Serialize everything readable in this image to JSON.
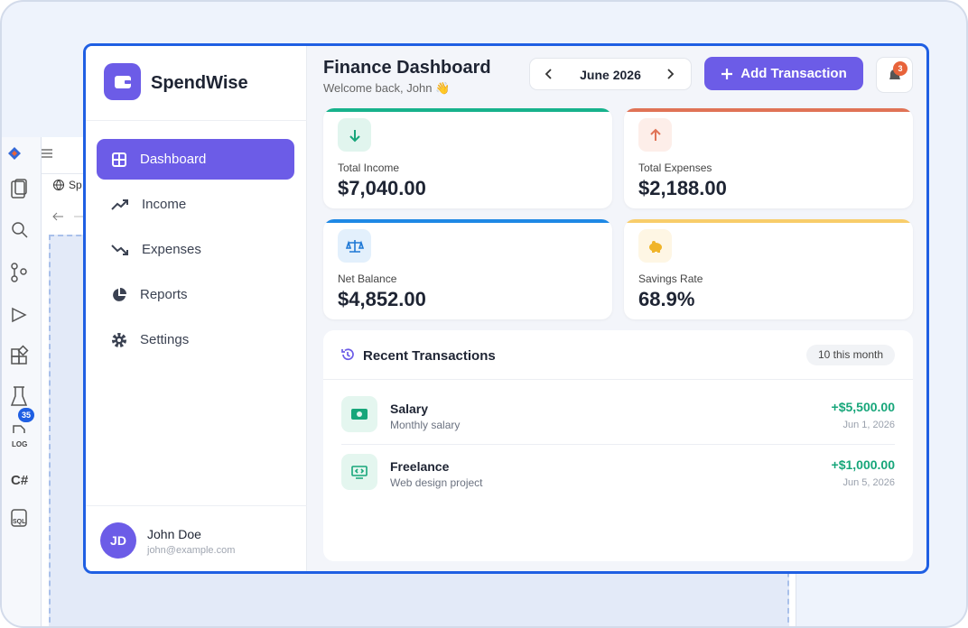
{
  "ide": {
    "tab": "Sp",
    "badge": "35",
    "icon_labels": [
      "LOG",
      "C#",
      "SQL"
    ]
  },
  "app": {
    "brand": "SpendWise",
    "nav": [
      "Dashboard",
      "Income",
      "Expenses",
      "Reports",
      "Settings"
    ],
    "user": {
      "initials": "JD",
      "name": "John Doe",
      "email": "john@example.com"
    }
  },
  "header": {
    "title": "Finance Dashboard",
    "subtitle": "Welcome back, John 👋",
    "month": "June 2026",
    "add_button": "Add Transaction",
    "notifications": "3"
  },
  "stats": [
    {
      "label": "Total Income",
      "value": "$7,040.00"
    },
    {
      "label": "Total Expenses",
      "value": "$2,188.00"
    },
    {
      "label": "Net Balance",
      "value": "$4,852.00"
    },
    {
      "label": "Savings Rate",
      "value": "68.9%"
    }
  ],
  "transactions": {
    "title": "Recent Transactions",
    "count": "10 this month",
    "items": [
      {
        "name": "Salary",
        "note": "Monthly salary",
        "amount": "+$5,500.00",
        "date": "Jun 1, 2026"
      },
      {
        "name": "Freelance",
        "note": "Web design project",
        "amount": "+$1,000.00",
        "date": "Jun 5, 2026"
      }
    ]
  }
}
